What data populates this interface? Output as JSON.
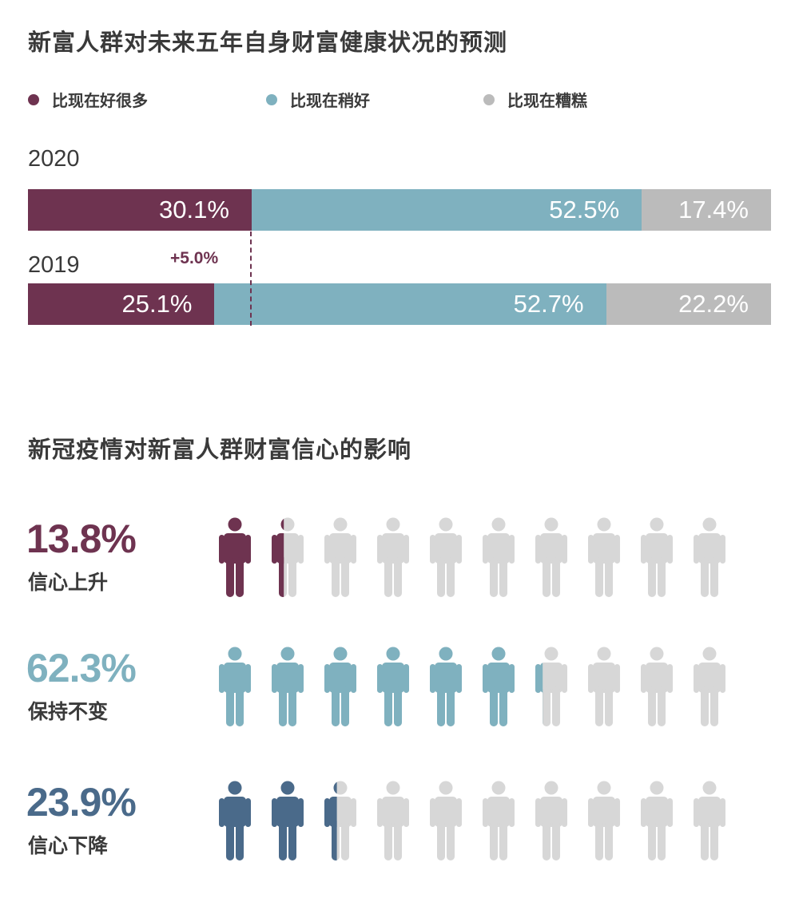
{
  "chart_data": [
    {
      "type": "bar",
      "stacked": true,
      "orientation": "horizontal",
      "title": "新富人群对未来五年自身财富健康状况的预测",
      "categories": [
        "2020",
        "2019"
      ],
      "series": [
        {
          "name": "比现在好很多",
          "values": [
            30.1,
            25.1
          ],
          "labels": [
            "30.1%",
            "25.1%"
          ],
          "color": "#6e3350"
        },
        {
          "name": "比现在稍好",
          "values": [
            52.5,
            52.7
          ],
          "labels": [
            "52.5%",
            "52.7%"
          ],
          "color": "#7fb1bf"
        },
        {
          "name": "比现在糟糕",
          "values": [
            17.4,
            22.2
          ],
          "labels": [
            "17.4%",
            "22.2%"
          ],
          "color": "#bbbbbb"
        }
      ],
      "annotation": "+5.0%",
      "legend_position": "top"
    },
    {
      "type": "pictogram",
      "title": "新冠疫情对新富人群财富信心的影响",
      "icons_total": 10,
      "empty_color": "#d7d7d7",
      "rows": [
        {
          "label": "信心上升",
          "value": 13.8,
          "value_label": "13.8%",
          "color": "#6e3350"
        },
        {
          "label": "保持不变",
          "value": 62.3,
          "value_label": "62.3%",
          "color": "#7fb1bf"
        },
        {
          "label": "信心下降",
          "value": 23.9,
          "value_label": "23.9%",
          "color": "#4a6a8a"
        }
      ]
    }
  ]
}
